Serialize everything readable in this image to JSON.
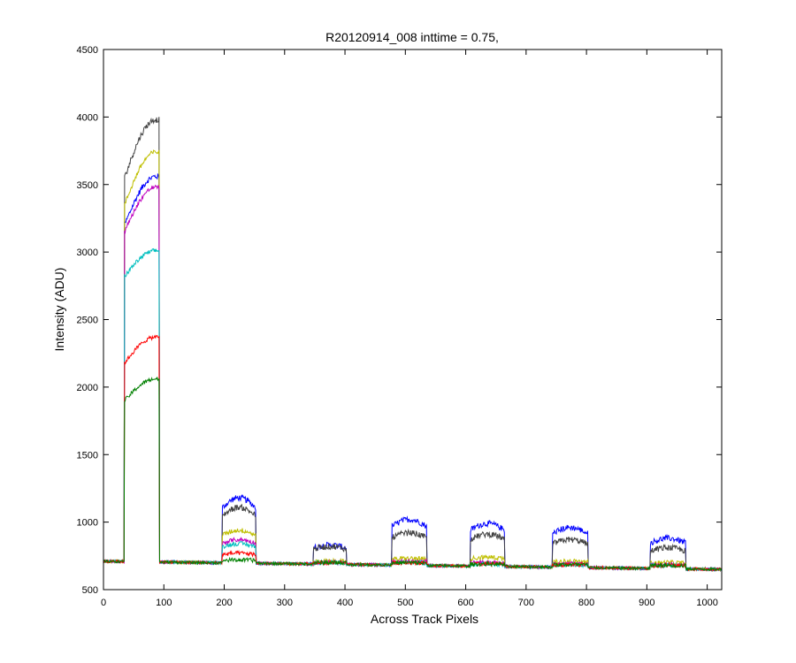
{
  "chart_data": {
    "type": "line",
    "title": "R20120914_008 inttime = 0.75,",
    "xlabel": "Across Track Pixels",
    "ylabel": "Intensity (ADU)",
    "xlim": [
      0,
      1024
    ],
    "ylim": [
      500,
      4500
    ],
    "xticks": [
      "0",
      "100",
      "200",
      "300",
      "400",
      "500",
      "600",
      "700",
      "800",
      "900",
      "1000"
    ],
    "yticks": [
      "500",
      "1000",
      "1500",
      "2000",
      "2500",
      "3000",
      "3500",
      "4000",
      "4500"
    ],
    "grid": false,
    "legend": "none",
    "baseline": {
      "x": [
        0,
        1024
      ],
      "y": [
        710,
        650
      ]
    },
    "plateaus": [
      {
        "x_start": 35,
        "x_end": 92,
        "rise": 3,
        "shape": "ramp"
      },
      {
        "x_start": 197,
        "x_end": 252,
        "rise": 3,
        "shape": "flat"
      },
      {
        "x_start": 348,
        "x_end": 402,
        "rise": 3,
        "shape": "flat"
      },
      {
        "x_start": 478,
        "x_end": 535,
        "rise": 3,
        "shape": "flat"
      },
      {
        "x_start": 608,
        "x_end": 664,
        "rise": 3,
        "shape": "flat"
      },
      {
        "x_start": 744,
        "x_end": 802,
        "rise": 3,
        "shape": "flat"
      },
      {
        "x_start": 906,
        "x_end": 964,
        "rise": 3,
        "shape": "flat"
      }
    ],
    "series": [
      {
        "color": "#0000ff",
        "levels": [
          [
            3200,
            3560
          ],
          1180,
          830,
          1020,
          990,
          960,
          880
        ],
        "noise": 22
      },
      {
        "color": "#404040",
        "levels": [
          [
            3550,
            3980
          ],
          1110,
          820,
          920,
          910,
          870,
          810
        ],
        "noise": 22
      },
      {
        "color": "#bfbf00",
        "levels": [
          [
            3350,
            3740
          ],
          940,
          710,
          730,
          740,
          710,
          700
        ],
        "noise": 18
      },
      {
        "color": "#bf00bf",
        "levels": [
          [
            3150,
            3480
          ],
          870,
          700,
          710,
          700,
          690,
          685
        ],
        "noise": 16
      },
      {
        "color": "#00bfbf",
        "levels": [
          [
            2820,
            3010
          ],
          840,
          700,
          700,
          690,
          685,
          680
        ],
        "noise": 16
      },
      {
        "color": "#ff0000",
        "levels": [
          [
            2180,
            2370
          ],
          770,
          700,
          700,
          690,
          685,
          680
        ],
        "noise": 15
      },
      {
        "color": "#008000",
        "levels": [
          [
            1900,
            2060
          ],
          720,
          700,
          700,
          690,
          685,
          680
        ],
        "noise": 15
      }
    ]
  }
}
